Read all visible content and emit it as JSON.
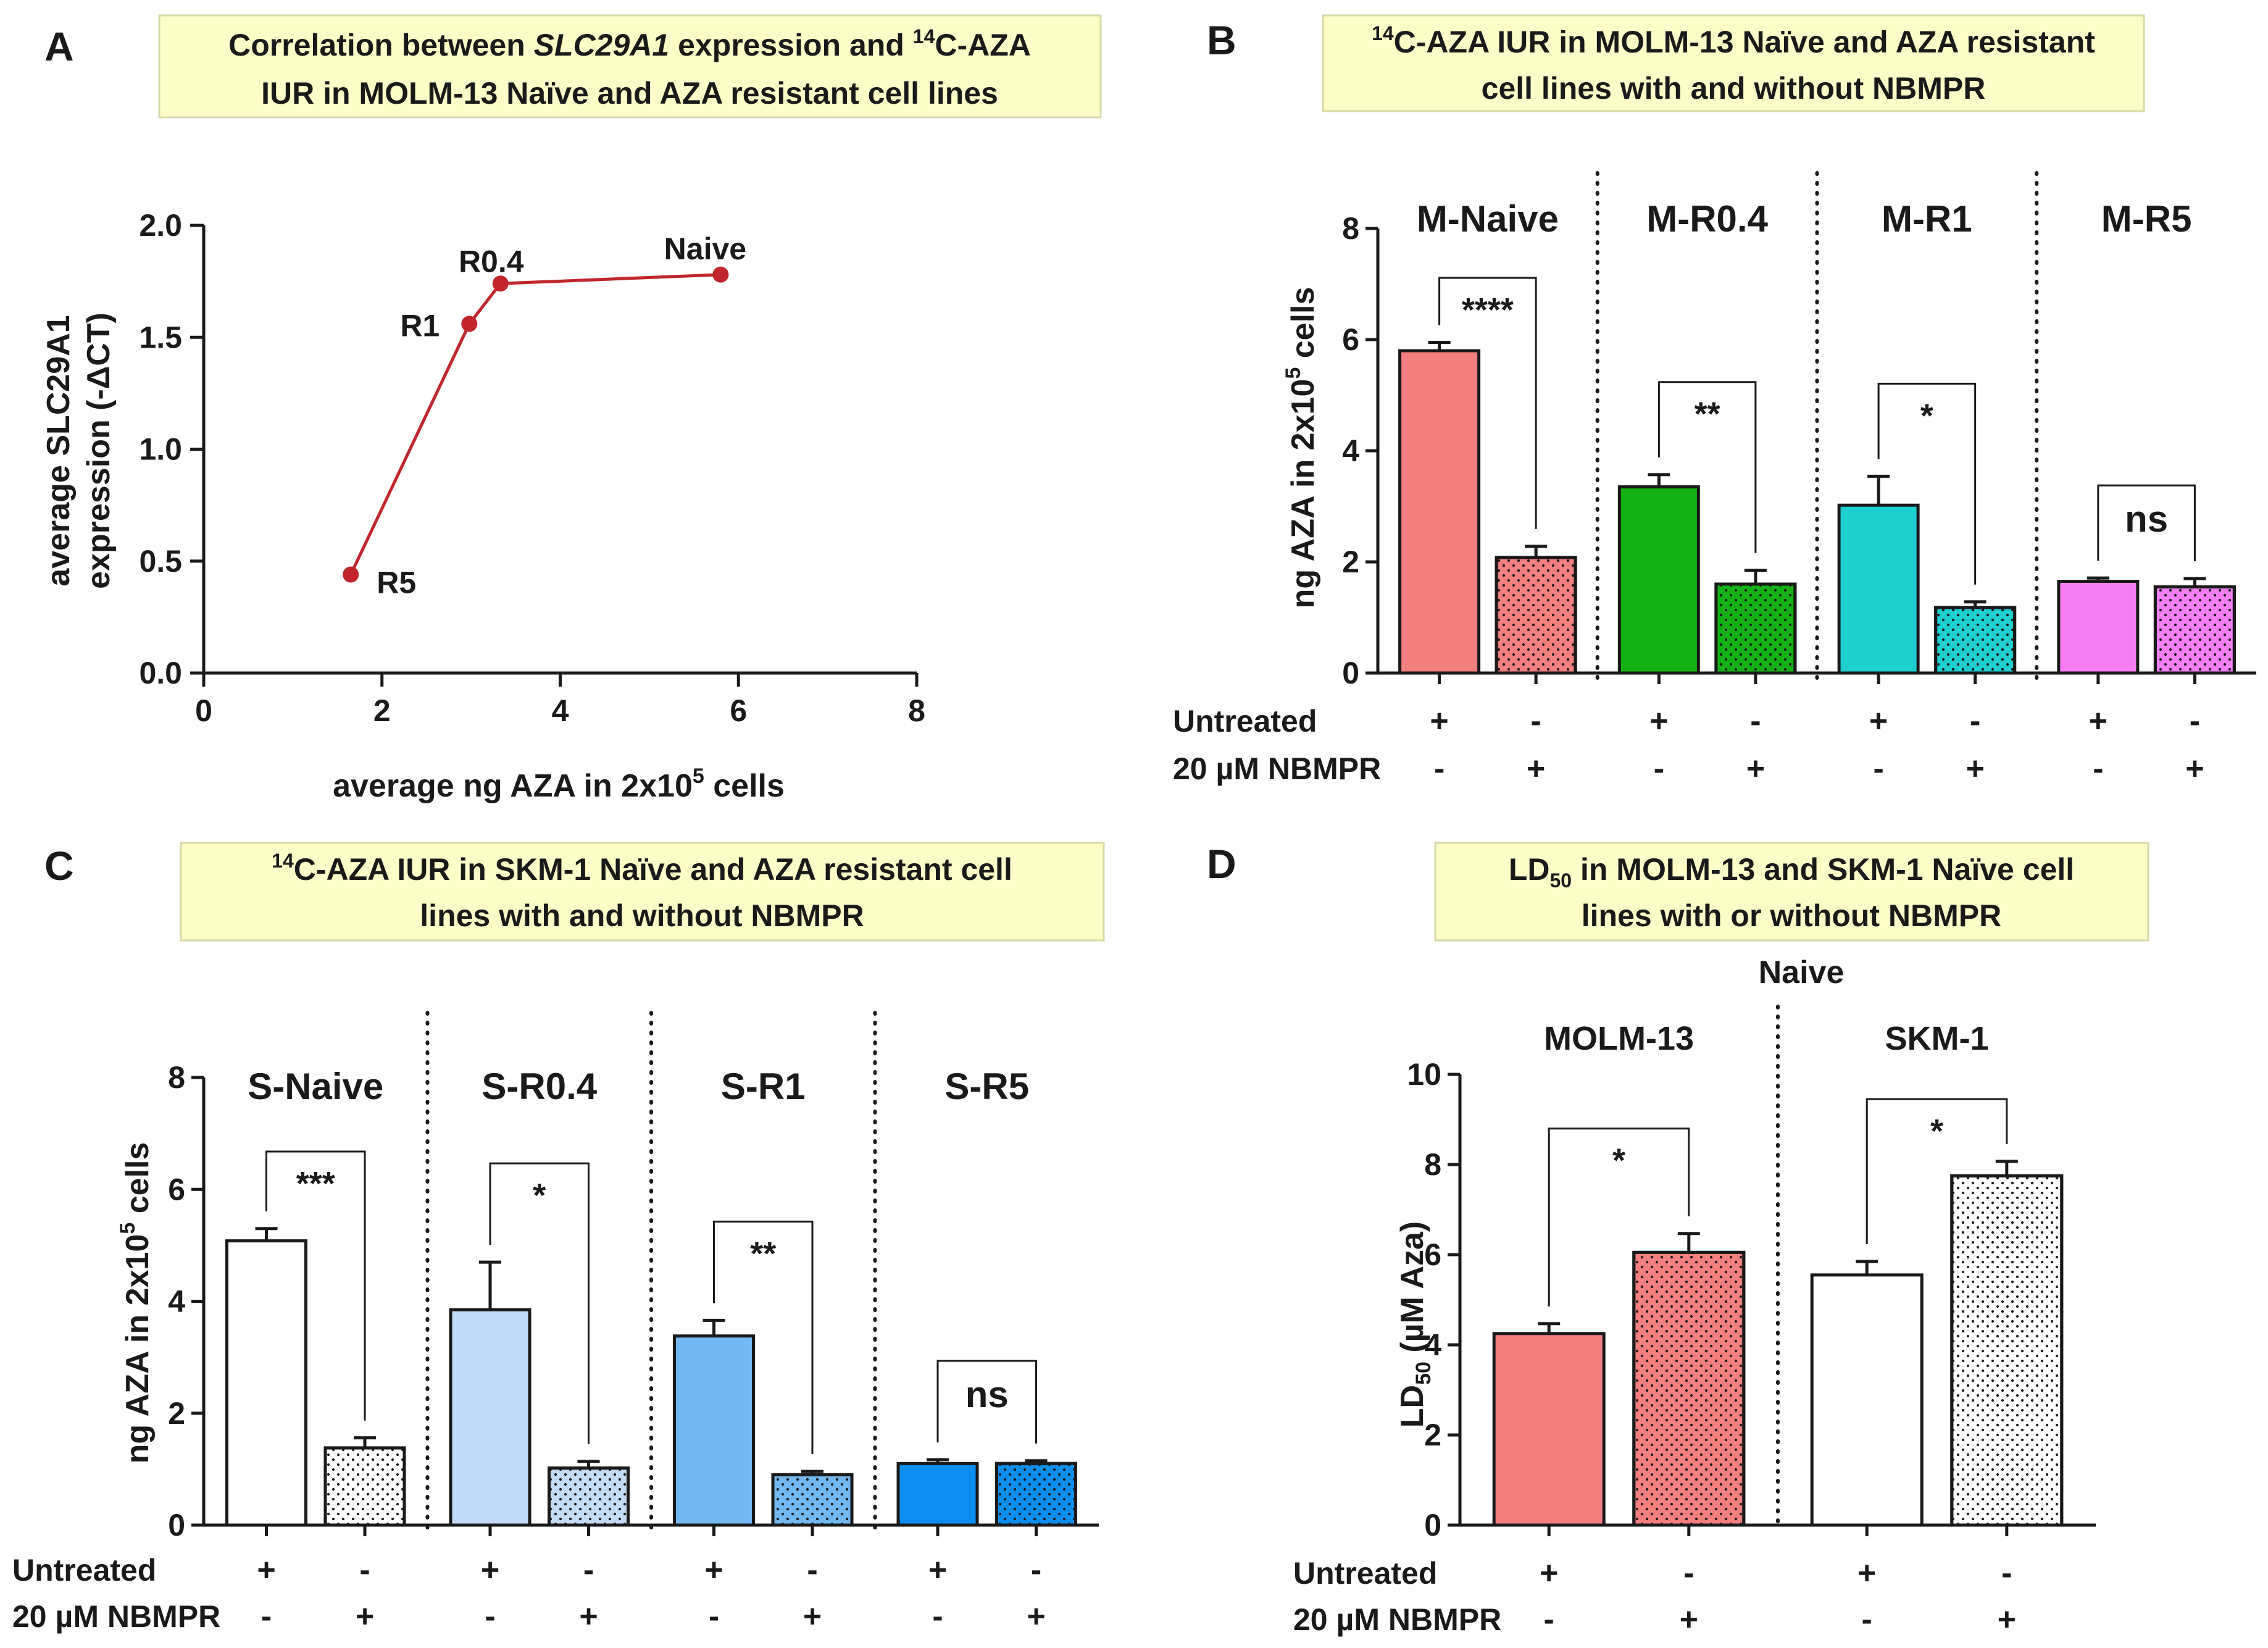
{
  "figure": {
    "panels": [
      "A",
      "B",
      "C",
      "D"
    ]
  },
  "chart_data": [
    {
      "id": "A",
      "type": "line",
      "title_parts": [
        "Correlation between ",
        "SLC29A1",
        " expression and ",
        "14",
        "C-AZA"
      ],
      "title_line2": "IUR in MOLM-13 Naïve and AZA resistant cell lines",
      "xlabel_main": "average ng AZA in 2x10",
      "xlabel_sup": "5",
      "xlabel_tail": " cells",
      "ylabel_line1": "average SLC29A1",
      "ylabel_line2": "expression (-ΔCT)",
      "xlim": [
        0,
        8
      ],
      "ylim": [
        0,
        2.0
      ],
      "xticks": [
        "0",
        "2",
        "4",
        "6",
        "8"
      ],
      "yticks": [
        "0.0",
        "0.5",
        "1.0",
        "1.5",
        "2.0"
      ],
      "points": [
        {
          "label": "R5",
          "x": 1.65,
          "y": 0.44
        },
        {
          "label": "R1",
          "x": 2.98,
          "y": 1.56
        },
        {
          "label": "R0.4",
          "x": 3.33,
          "y": 1.74
        },
        {
          "label": "Naive",
          "x": 5.8,
          "y": 1.78
        }
      ],
      "color": "#c0262b"
    },
    {
      "id": "B",
      "type": "bar",
      "title_l1_sup": "14",
      "title_l1": "C-AZA IUR in MOLM-13 Naïve and AZA resistant",
      "title_l2": "cell lines with and without NBMPR",
      "ylabel_main": "ng AZA in 2x10",
      "ylabel_sup": "5",
      "ylabel_tail": " cells",
      "ylim": [
        0,
        8
      ],
      "yticks": [
        "0",
        "2",
        "4",
        "6",
        "8"
      ],
      "groups": [
        {
          "name": "M-Naive",
          "sig": "****",
          "bars": [
            {
              "value": 5.8,
              "err": 0.15,
              "color": "#f47f7f",
              "dotted": false
            },
            {
              "value": 2.08,
              "err": 0.2,
              "color": "#f47f7f",
              "dotted": true
            }
          ]
        },
        {
          "name": "M-R0.4",
          "sig": "**",
          "bars": [
            {
              "value": 3.35,
              "err": 0.22,
              "color": "#14b214",
              "dotted": false
            },
            {
              "value": 1.6,
              "err": 0.25,
              "color": "#14b214",
              "dotted": true
            }
          ]
        },
        {
          "name": "M-R1",
          "sig": "*",
          "bars": [
            {
              "value": 3.02,
              "err": 0.52,
              "color": "#1ecfcf",
              "dotted": false
            },
            {
              "value": 1.18,
              "err": 0.1,
              "color": "#1ecfcf",
              "dotted": true
            }
          ]
        },
        {
          "name": "M-R5",
          "sig": "ns",
          "bars": [
            {
              "value": 1.65,
              "err": 0.06,
              "color": "#f57ef5",
              "dotted": false
            },
            {
              "value": 1.55,
              "err": 0.15,
              "color": "#f57ef5",
              "dotted": true
            }
          ]
        }
      ],
      "row_labels": [
        "Untreated",
        "20 µM NBMPR"
      ],
      "row1": [
        "+",
        "-",
        "+",
        "-",
        "+",
        "-",
        "+",
        "-"
      ],
      "row2": [
        "-",
        "+",
        "-",
        "+",
        "-",
        "+",
        "-",
        "+"
      ]
    },
    {
      "id": "C",
      "type": "bar",
      "title_l1_sup": "14",
      "title_l1": "C-AZA IUR in SKM-1 Naïve and AZA resistant cell",
      "title_l2": "lines with and without NBMPR",
      "ylabel_main": "ng AZA in 2x10",
      "ylabel_sup": "5",
      "ylabel_tail": " cells",
      "ylim": [
        0,
        8
      ],
      "yticks": [
        "0",
        "2",
        "4",
        "6",
        "8"
      ],
      "groups": [
        {
          "name": "S-Naive",
          "sig": "***",
          "bars": [
            {
              "value": 5.08,
              "err": 0.22,
              "color": "#ffffff",
              "dotted": false
            },
            {
              "value": 1.38,
              "err": 0.18,
              "color": "#ffffff",
              "dotted": true
            }
          ]
        },
        {
          "name": "S-R0.4",
          "sig": "*",
          "bars": [
            {
              "value": 3.85,
              "err": 0.85,
              "color": "#c2dcf5",
              "dotted": false
            },
            {
              "value": 1.02,
              "err": 0.12,
              "color": "#c2dcf5",
              "dotted": true
            }
          ]
        },
        {
          "name": "S-R1",
          "sig": "**",
          "bars": [
            {
              "value": 3.38,
              "err": 0.28,
              "color": "#72b8f2",
              "dotted": false
            },
            {
              "value": 0.9,
              "err": 0.06,
              "color": "#72b8f2",
              "dotted": true
            }
          ]
        },
        {
          "name": "S-R5",
          "sig": "ns",
          "bars": [
            {
              "value": 1.1,
              "err": 0.07,
              "color": "#0a8ef0",
              "dotted": false
            },
            {
              "value": 1.1,
              "err": 0.05,
              "color": "#0a8ef0",
              "dotted": true
            }
          ]
        }
      ],
      "row_labels": [
        "Untreated",
        "20 µM NBMPR"
      ],
      "row1": [
        "+",
        "-",
        "+",
        "-",
        "+",
        "-",
        "+",
        "-"
      ],
      "row2": [
        "-",
        "+",
        "-",
        "+",
        "-",
        "+",
        "-",
        "+"
      ]
    },
    {
      "id": "D",
      "type": "bar",
      "title_l1_pre": "LD",
      "title_l1_sub": "50",
      "title_l1": " in MOLM-13 and SKM-1 Naïve cell",
      "title_l2": "lines with or without NBMPR",
      "subtitle": "Naive",
      "ylabel_pre": "LD",
      "ylabel_sub": "50",
      "ylabel_tail": " (µM Aza)",
      "ylim": [
        0,
        10
      ],
      "yticks": [
        "0",
        "2",
        "4",
        "6",
        "8",
        "10"
      ],
      "groups": [
        {
          "name": "MOLM-13",
          "sig": "*",
          "bars": [
            {
              "value": 4.25,
              "err": 0.22,
              "color": "#f47f7f",
              "dotted": false
            },
            {
              "value": 6.05,
              "err": 0.42,
              "color": "#f47f7f",
              "dotted": true
            }
          ]
        },
        {
          "name": "SKM-1",
          "sig": "*",
          "bars": [
            {
              "value": 5.55,
              "err": 0.3,
              "color": "#ffffff",
              "dotted": false
            },
            {
              "value": 7.75,
              "err": 0.32,
              "color": "#ffffff",
              "dotted": true
            }
          ]
        }
      ],
      "row_labels": [
        "Untreated",
        "20 µM NBMPR"
      ],
      "row1": [
        "+",
        "-",
        "+",
        "-"
      ],
      "row2": [
        "-",
        "+",
        "-",
        "+"
      ]
    }
  ]
}
